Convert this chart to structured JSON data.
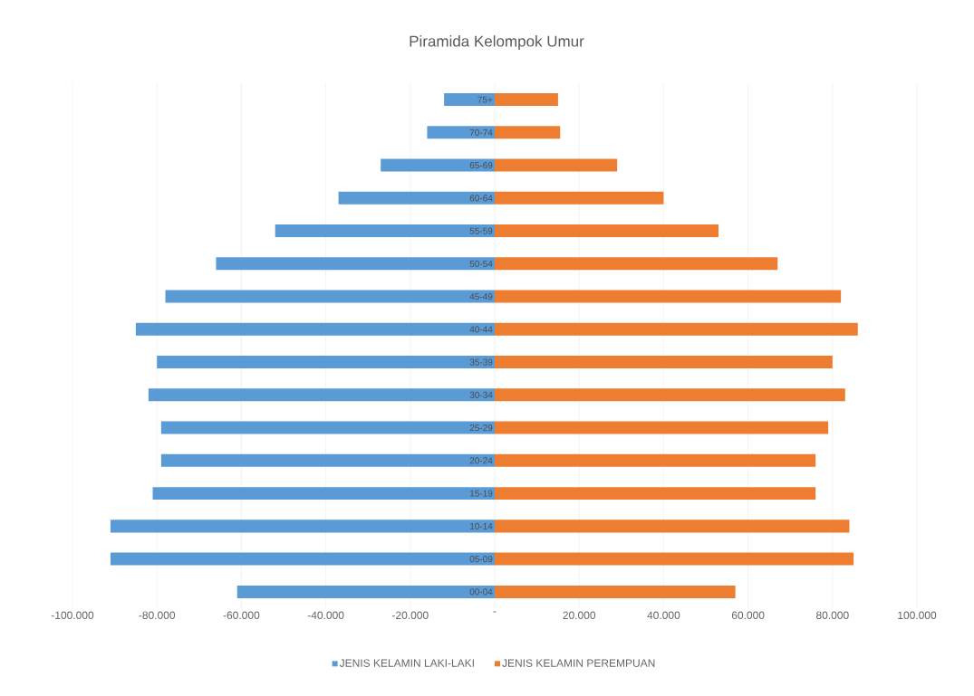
{
  "chart_data": {
    "type": "bar",
    "orientation": "horizontal",
    "title": "Piramida Kelompok Umur",
    "categories": [
      "75+",
      "70-74",
      "65-69",
      "60-64",
      "55-59",
      "50-54",
      "45-49",
      "40-44",
      "35-39",
      "30-34",
      "25-29",
      "20-24",
      "15-19",
      "10-14",
      "05-09",
      "00-04"
    ],
    "series": [
      {
        "name": "JENIS KELAMIN LAKI-LAKI",
        "color": "#5b9bd5",
        "values": [
          -12000,
          -16000,
          -27000,
          -37000,
          -52000,
          -66000,
          -78000,
          -85000,
          -80000,
          -82000,
          -79000,
          -79000,
          -81000,
          -91000,
          -91000,
          -61000
        ]
      },
      {
        "name": "JENIS KELAMIN PEREMPUAN",
        "color": "#ed7d31",
        "values": [
          15000,
          15500,
          29000,
          40000,
          53000,
          67000,
          82000,
          86000,
          80000,
          83000,
          79000,
          76000,
          76000,
          84000,
          85000,
          57000
        ]
      }
    ],
    "xlim": [
      -100000,
      100000
    ],
    "xticks": [
      {
        "value": -100000,
        "label": "-100.000"
      },
      {
        "value": -80000,
        "label": "-80.000"
      },
      {
        "value": -60000,
        "label": "-60.000"
      },
      {
        "value": -40000,
        "label": "-40.000"
      },
      {
        "value": -20000,
        "label": "-20.000"
      },
      {
        "value": 0,
        "label": "-"
      },
      {
        "value": 20000,
        "label": "20.000"
      },
      {
        "value": 40000,
        "label": "40.000"
      },
      {
        "value": 60000,
        "label": "60.000"
      },
      {
        "value": 80000,
        "label": "80.000"
      },
      {
        "value": 100000,
        "label": "100.000"
      }
    ],
    "grid": "x",
    "legend": "bottom",
    "stacked": true
  }
}
